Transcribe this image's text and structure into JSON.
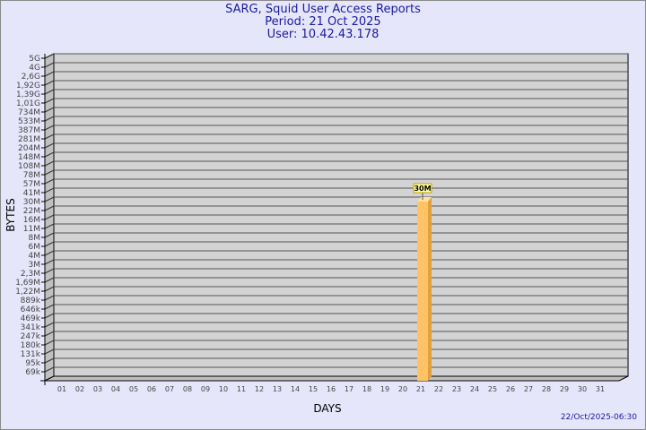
{
  "chart_data": {
    "type": "bar",
    "title": "SARG, Squid User Access Reports",
    "subtitle_period": "Period: 21 Oct 2025",
    "subtitle_user": "User: 10.42.43.178",
    "xlabel": "DAYS",
    "ylabel": "BYTES",
    "y_scale": "log",
    "y_tick_labels": [
      "5G",
      "4G",
      "2,6G",
      "1,92G",
      "1,39G",
      "1,01G",
      "734M",
      "533M",
      "387M",
      "281M",
      "204M",
      "148M",
      "108M",
      "78M",
      "57M",
      "41M",
      "30M",
      "22M",
      "16M",
      "11M",
      "8M",
      "6M",
      "4M",
      "3M",
      "2,3M",
      "1,69M",
      "1,22M",
      "889k",
      "646k",
      "469k",
      "341k",
      "247k",
      "180k",
      "131k",
      "95k",
      "69k"
    ],
    "categories": [
      "01",
      "02",
      "03",
      "04",
      "05",
      "06",
      "07",
      "08",
      "09",
      "10",
      "11",
      "12",
      "13",
      "14",
      "15",
      "16",
      "17",
      "18",
      "19",
      "20",
      "21",
      "22",
      "23",
      "24",
      "25",
      "26",
      "27",
      "28",
      "29",
      "30",
      "31"
    ],
    "bars": [
      {
        "day": "21",
        "value_label": "30M"
      }
    ],
    "grid": true,
    "colors": {
      "bar": "#ffc366",
      "bar_side": "#e0a040",
      "plot_bg": "#d3d3d3",
      "title": "#1a1aa0"
    }
  },
  "footer": {
    "timestamp": "22/Oct/2025-06:30"
  }
}
